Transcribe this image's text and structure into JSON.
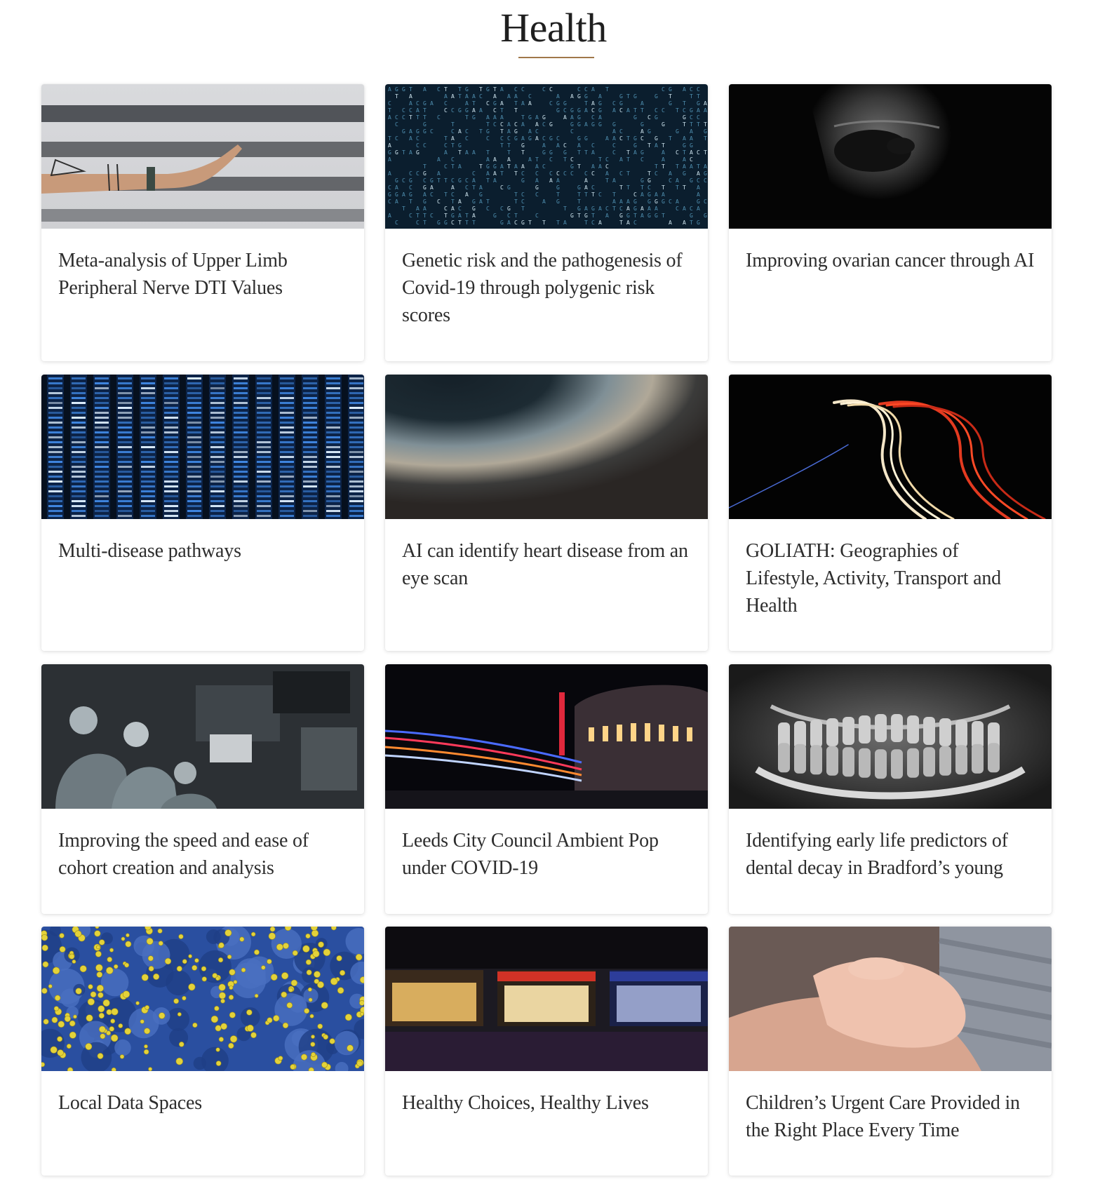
{
  "section": {
    "title": "Health",
    "accent_color": "#a0784a"
  },
  "cards": [
    {
      "title": "Meta-analysis of Upper Limb Peripheral Nerve DTI Values",
      "image": "hand-reaching-photo"
    },
    {
      "title": "Genetic risk and the pathogenesis of Covid-19 through polygenic risk scores",
      "image": "dna-code-photo"
    },
    {
      "title": "Improving ovarian cancer through AI",
      "image": "ultrasound-photo"
    },
    {
      "title": "Multi-disease pathways",
      "image": "server-lights-photo"
    },
    {
      "title": "AI can identify heart disease from an eye scan",
      "image": "eye-iris-photo"
    },
    {
      "title": "GOLIATH: Geographies of Lifestyle, Activity, Transport and Health",
      "image": "light-trails-photo"
    },
    {
      "title": "Improving the speed and ease of cohort creation and analysis",
      "image": "operating-theatre-photo"
    },
    {
      "title": "Leeds City Council Ambient Pop under COVID-19",
      "image": "city-night-photo"
    },
    {
      "title": "Identifying early life predictors of dental decay in Bradford’s young",
      "image": "dental-xray-photo"
    },
    {
      "title": "Local Data Spaces",
      "image": "virus-microscope-photo"
    },
    {
      "title": "Healthy Choices, Healthy Lives",
      "image": "shopfronts-night-photo"
    },
    {
      "title": "Children’s Urgent Care Provided in the Right Place Every Time",
      "image": "baby-hand-photo"
    }
  ]
}
